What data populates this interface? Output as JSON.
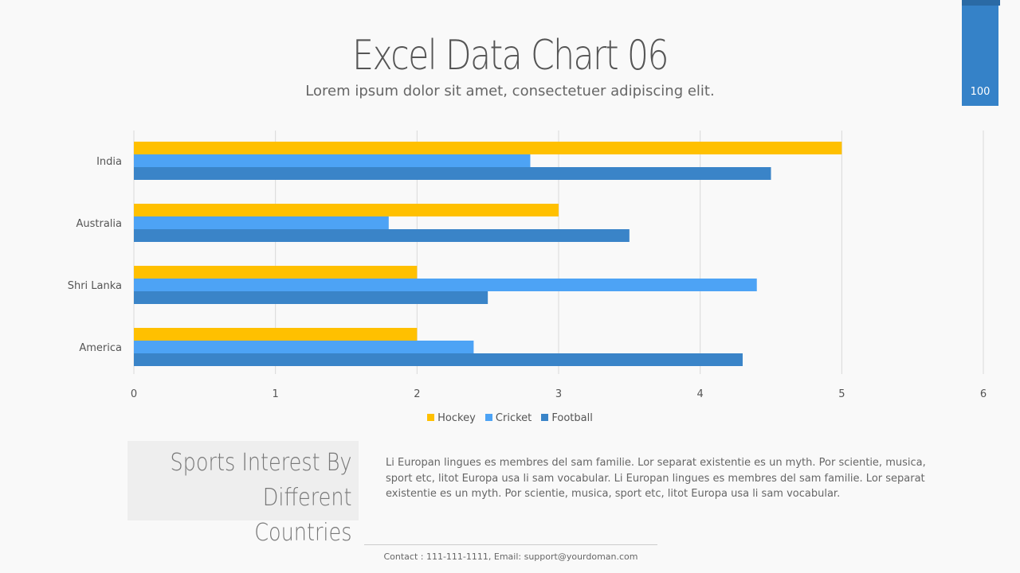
{
  "header": {
    "title": "Excel Data Chart 06",
    "subtitle": "Lorem ipsum dolor sit amet, consectetuer  adipiscing elit.",
    "page_number": "100"
  },
  "colors": {
    "accent": "#3582c8",
    "hockey": "#ffc000",
    "cricket": "#4da3f5",
    "football": "#3a84c8"
  },
  "chart_data": {
    "type": "bar",
    "orientation": "horizontal",
    "categories": [
      "India",
      "Australia",
      "Shri Lanka",
      "America"
    ],
    "series": [
      {
        "name": "Hockey",
        "values": [
          5,
          3,
          2,
          2
        ]
      },
      {
        "name": "Cricket",
        "values": [
          2.8,
          1.8,
          4.4,
          2.4
        ]
      },
      {
        "name": "Football",
        "values": [
          4.5,
          3.5,
          2.5,
          4.3
        ]
      }
    ],
    "xlim": [
      0,
      6
    ],
    "xticks": [
      "0",
      "1",
      "2",
      "3",
      "4",
      "5",
      "6"
    ],
    "grid": true,
    "legend": "bottom"
  },
  "info": {
    "box_line1": "Sports Interest By",
    "box_line2": "Different Countries",
    "description": "Li Europan lingues es membres del sam familie. Lor separat existentie es un myth. Por scientie, musica, sport etc, litot Europa usa li sam vocabular. Li Europan lingues es membres del sam familie. Lor separat existentie es un myth. Por scientie, musica, sport etc, litot Europa usa li sam vocabular."
  },
  "footer": {
    "contact": "Contact : 111-111-1111, Email: support@yourdoman.com"
  }
}
